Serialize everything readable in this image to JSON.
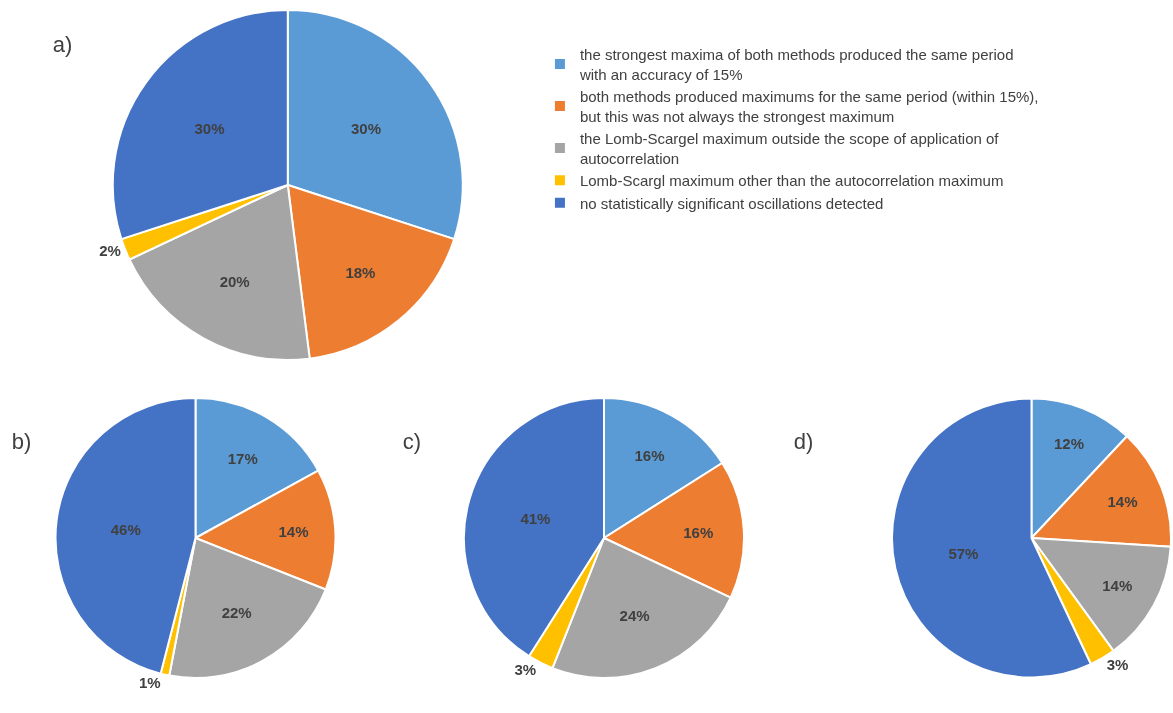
{
  "chart_data": [
    {
      "type": "pie",
      "title": "a)",
      "legend": "right",
      "categories": [
        "the strongest maxima of both methods produced the same period with an accuracy of 15%",
        "both methods produced maximums for the same period (within 15%), but this was not always the strongest maximum",
        "the Lomb-Scargel maximum outside the scope of application of autocorrelation",
        "Lomb-Scargl maximum other than the autocorrelation maximum",
        "no statistically significant oscillations detected"
      ],
      "values": [
        30,
        18,
        20,
        2,
        30
      ],
      "value_labels": [
        "30%",
        "18%",
        "20%",
        "2%",
        "30%"
      ],
      "colors": [
        "#5b9bd5",
        "#ed7d31",
        "#a5a5a5",
        "#ffc000",
        "#4472c4"
      ]
    },
    {
      "type": "pie",
      "title": "b)",
      "categories": [
        null,
        null,
        null,
        null,
        null
      ],
      "values": [
        17,
        14,
        22,
        1,
        46
      ],
      "value_labels": [
        "17%",
        "14%",
        "22%",
        "1%",
        "46%"
      ],
      "colors": [
        "#5b9bd5",
        "#ed7d31",
        "#a5a5a5",
        "#ffc000",
        "#4472c4"
      ]
    },
    {
      "type": "pie",
      "title": "c)",
      "categories": [
        null,
        null,
        null,
        null,
        null
      ],
      "values": [
        16,
        16,
        24,
        3,
        41
      ],
      "value_labels": [
        "16%",
        "16%",
        "24%",
        "3%",
        "41%"
      ],
      "colors": [
        "#5b9bd5",
        "#ed7d31",
        "#a5a5a5",
        "#ffc000",
        "#4472c4"
      ]
    },
    {
      "type": "pie",
      "title": "d)",
      "categories": [
        null,
        null,
        null,
        null,
        null
      ],
      "values": [
        12,
        14,
        14,
        3,
        57
      ],
      "value_labels": [
        "12%",
        "14%",
        "14%",
        "3%",
        "57%"
      ],
      "colors": [
        "#5b9bd5",
        "#ed7d31",
        "#a5a5a5",
        "#ffc000",
        "#4472c4"
      ]
    }
  ]
}
